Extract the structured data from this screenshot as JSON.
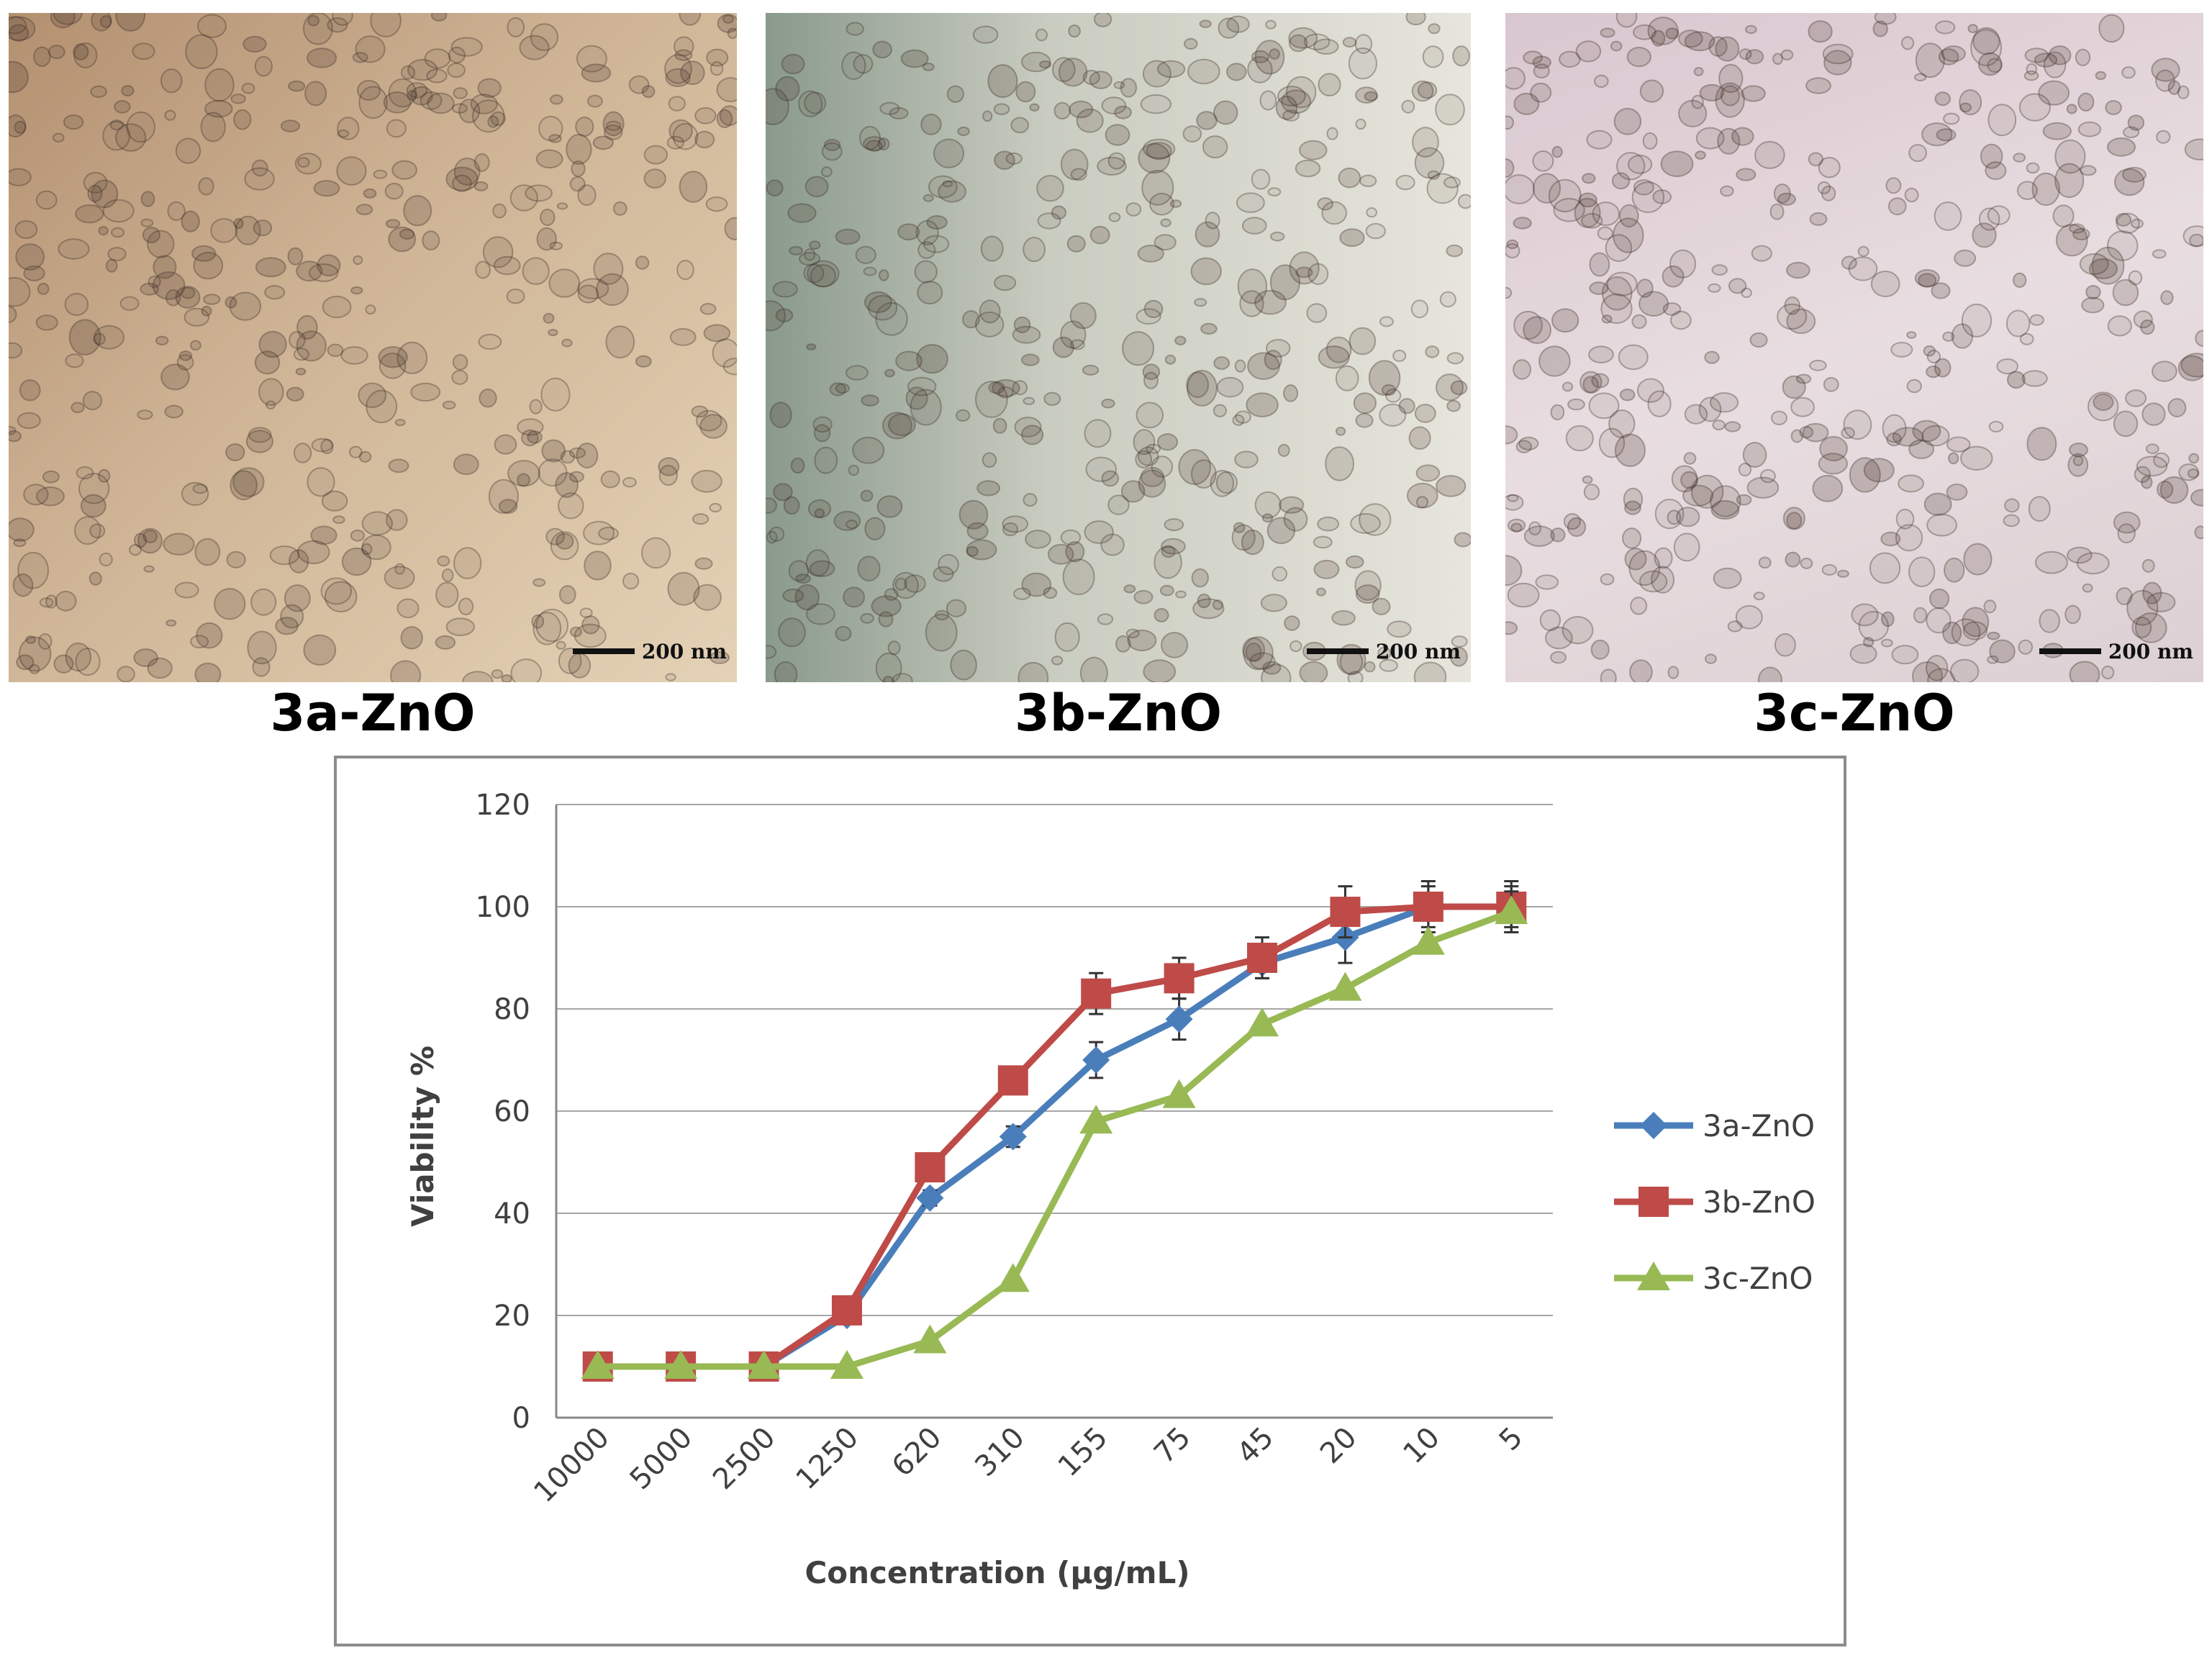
{
  "panels": [
    {
      "label": "3a-ZnO",
      "scale": "200 nm"
    },
    {
      "label": "3b-ZnO",
      "scale": "200 nm"
    },
    {
      "label": "3c-ZnO",
      "scale": "200 nm"
    }
  ],
  "chart_data": {
    "type": "line",
    "categories": [
      "10000",
      "5000",
      "2500",
      "1250",
      "620",
      "310",
      "155",
      "75",
      "45",
      "20",
      "10",
      "5"
    ],
    "xlabel": "Concentration (µg/mL)",
    "ylabel": "Viability %",
    "ylim": [
      0,
      120
    ],
    "yticks": [
      0,
      20,
      40,
      60,
      80,
      100,
      120
    ],
    "grid": "horizontal",
    "legend_position": "right",
    "error_bars": true,
    "series": [
      {
        "name": "3a-ZnO",
        "color": "#4a7ebb",
        "marker": "diamond",
        "values": [
          10,
          10,
          10,
          20,
          43,
          55,
          70,
          78,
          89,
          94,
          100,
          100
        ],
        "errors": [
          0,
          0,
          0,
          0,
          1.5,
          2,
          3.5,
          4,
          3,
          5,
          4,
          4
        ]
      },
      {
        "name": "3b-ZnO",
        "color": "#be4b48",
        "marker": "square",
        "values": [
          10,
          10,
          10,
          21,
          49,
          66,
          83,
          86,
          90,
          99,
          100,
          100
        ],
        "errors": [
          0,
          0,
          0,
          0,
          1.5,
          2,
          4,
          4,
          4,
          5,
          5,
          5
        ]
      },
      {
        "name": "3c-ZnO",
        "color": "#98b954",
        "marker": "triangle",
        "values": [
          10,
          10,
          10,
          10,
          15,
          27,
          58,
          63,
          77,
          84,
          93,
          99
        ],
        "errors": [
          0,
          0,
          0,
          0,
          0,
          0,
          0,
          0,
          0,
          0,
          0,
          4
        ]
      }
    ]
  }
}
